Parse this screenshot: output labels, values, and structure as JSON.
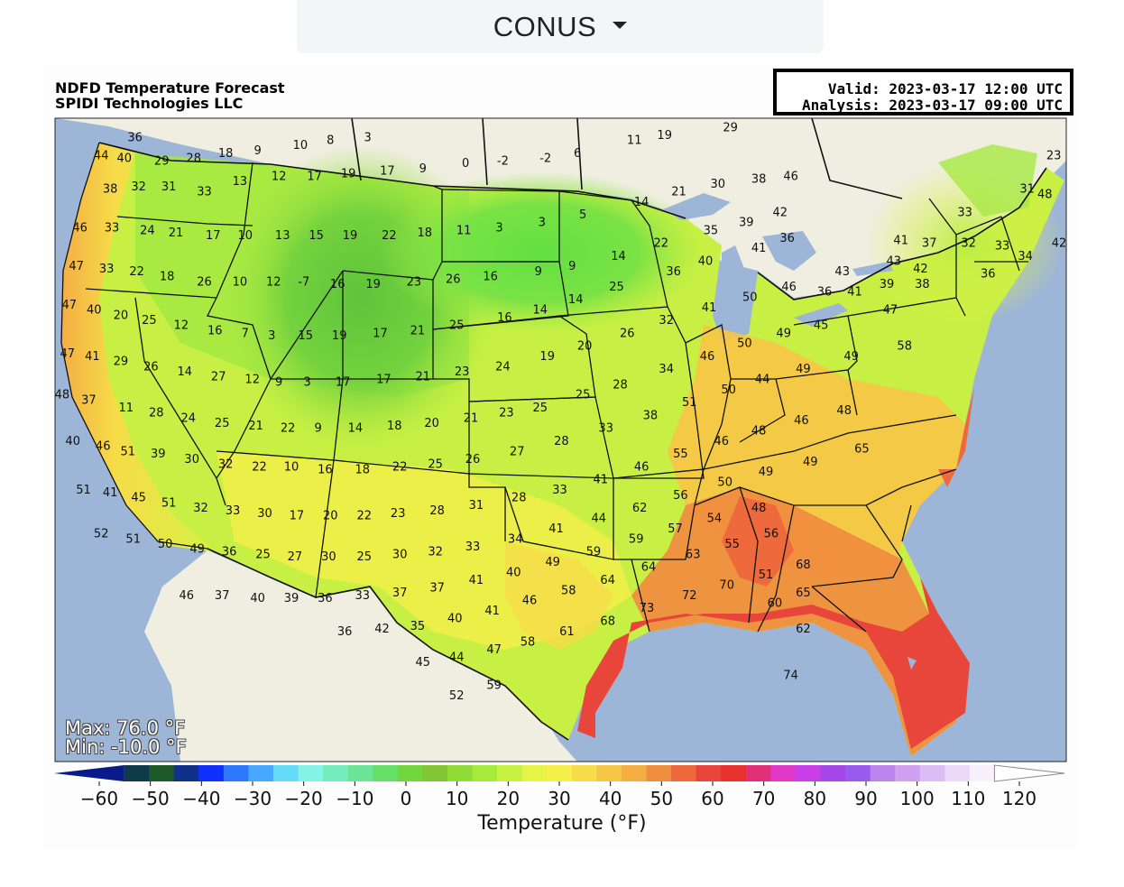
{
  "selector": {
    "label": "CONUS"
  },
  "header": {
    "title": "NDFD Temperature Forecast",
    "provider": "SPIDI Technologies LLC",
    "valid": "Valid: 2023-03-17 12:00 UTC",
    "analysis": "Analysis: 2023-03-17 09:00 UTC"
  },
  "stats": {
    "max": "Max: 76.0 °F",
    "min": "Min: -10.0 °F"
  },
  "colorbar": {
    "label": "Temperature (°F)",
    "ticks": [
      "-60",
      "-50",
      "-40",
      "-30",
      "-20",
      "-10",
      "0",
      "10",
      "20",
      "30",
      "40",
      "50",
      "60",
      "70",
      "80",
      "90",
      "100",
      "110",
      "120"
    ],
    "colors": [
      "#0a1a8a",
      "#0e3a4a",
      "#1e5a28",
      "#10308a",
      "#1030ff",
      "#2e78ff",
      "#46a8ff",
      "#64dcf8",
      "#84f2e6",
      "#74ecbc",
      "#6ce696",
      "#66e066",
      "#72d63e",
      "#82c636",
      "#92dc38",
      "#a6ea3c",
      "#c6f242",
      "#e6f446",
      "#f6f04a",
      "#f6dc48",
      "#f6c646",
      "#f4ae44",
      "#f08e40",
      "#ee6a3c",
      "#e8463a",
      "#e8302c",
      "#e23078",
      "#e238c8",
      "#c83ee8",
      "#a446e8",
      "#9a5aee",
      "#bc82ee",
      "#d0a0f0",
      "#dcbcf4",
      "#ecd8f8",
      "#f8f0fa",
      "#ffffff"
    ]
  },
  "stations": [
    {
      "t": "36",
      "lon": -122.5,
      "lat": 48.6
    },
    {
      "t": "44",
      "lon": -124.4,
      "lat": 47.9
    },
    {
      "t": "40",
      "lon": -123.1,
      "lat": 47.8
    },
    {
      "t": "29",
      "lon": -121.0,
      "lat": 47.7
    },
    {
      "t": "28",
      "lon": -119.2,
      "lat": 47.8
    },
    {
      "t": "18",
      "lon": -117.4,
      "lat": 48.0
    },
    {
      "t": "9",
      "lon": -115.6,
      "lat": 48.1
    },
    {
      "t": "10",
      "lon": -113.2,
      "lat": 48.3
    },
    {
      "t": "8",
      "lon": -111.5,
      "lat": 48.5
    },
    {
      "t": "3",
      "lon": -109.4,
      "lat": 48.6
    },
    {
      "t": "38",
      "lon": -123.9,
      "lat": 46.6
    },
    {
      "t": "32",
      "lon": -122.3,
      "lat": 46.7
    },
    {
      "t": "31",
      "lon": -120.6,
      "lat": 46.7
    },
    {
      "t": "33",
      "lon": -118.6,
      "lat": 46.5
    },
    {
      "t": "13",
      "lon": -116.6,
      "lat": 46.9
    },
    {
      "t": "12",
      "lon": -114.4,
      "lat": 47.1
    },
    {
      "t": "17",
      "lon": -112.4,
      "lat": 47.1
    },
    {
      "t": "19",
      "lon": -110.5,
      "lat": 47.2
    },
    {
      "t": "17",
      "lon": -108.3,
      "lat": 47.3
    },
    {
      "t": "9",
      "lon": -106.3,
      "lat": 47.4
    },
    {
      "t": "0",
      "lon": -103.9,
      "lat": 47.6
    },
    {
      "t": "-2",
      "lon": -101.8,
      "lat": 47.7
    },
    {
      "t": "-2",
      "lon": -99.4,
      "lat": 47.8
    },
    {
      "t": "6",
      "lon": -97.6,
      "lat": 48.0
    },
    {
      "t": "11",
      "lon": -94.4,
      "lat": 48.5
    },
    {
      "t": "19",
      "lon": -92.7,
      "lat": 48.7
    },
    {
      "t": "29",
      "lon": -89.0,
      "lat": 49.0
    },
    {
      "t": "46",
      "lon": -125.6,
      "lat": 45.1
    },
    {
      "t": "33",
      "lon": -123.8,
      "lat": 45.1
    },
    {
      "t": "24",
      "lon": -121.8,
      "lat": 45.0
    },
    {
      "t": "21",
      "lon": -120.2,
      "lat": 44.9
    },
    {
      "t": "17",
      "lon": -118.1,
      "lat": 44.8
    },
    {
      "t": "10",
      "lon": -116.3,
      "lat": 44.8
    },
    {
      "t": "13",
      "lon": -114.2,
      "lat": 44.8
    },
    {
      "t": "15",
      "lon": -112.3,
      "lat": 44.8
    },
    {
      "t": "19",
      "lon": -110.4,
      "lat": 44.8
    },
    {
      "t": "22",
      "lon": -108.2,
      "lat": 44.8
    },
    {
      "t": "18",
      "lon": -106.2,
      "lat": 44.9
    },
    {
      "t": "11",
      "lon": -104.0,
      "lat": 45.0
    },
    {
      "t": "3",
      "lon": -102.0,
      "lat": 45.1
    },
    {
      "t": "3",
      "lon": -99.6,
      "lat": 45.3
    },
    {
      "t": "5",
      "lon": -97.3,
      "lat": 45.6
    },
    {
      "t": "14",
      "lon": -94.0,
      "lat": 46.1
    },
    {
      "t": "21",
      "lon": -91.9,
      "lat": 46.5
    },
    {
      "t": "30",
      "lon": -89.7,
      "lat": 46.8
    },
    {
      "t": "38",
      "lon": -87.4,
      "lat": 47.0
    },
    {
      "t": "46",
      "lon": -85.6,
      "lat": 47.1
    },
    {
      "t": "47",
      "lon": -125.8,
      "lat": 43.6
    },
    {
      "t": "33",
      "lon": -124.1,
      "lat": 43.5
    },
    {
      "t": "22",
      "lon": -122.4,
      "lat": 43.4
    },
    {
      "t": "18",
      "lon": -120.7,
      "lat": 43.2
    },
    {
      "t": "26",
      "lon": -118.6,
      "lat": 43.0
    },
    {
      "t": "10",
      "lon": -116.6,
      "lat": 43.0
    },
    {
      "t": "12",
      "lon": -114.7,
      "lat": 43.0
    },
    {
      "t": "-7",
      "lon": -113.0,
      "lat": 43.0
    },
    {
      "t": "16",
      "lon": -111.1,
      "lat": 42.9
    },
    {
      "t": "19",
      "lon": -109.1,
      "lat": 42.9
    },
    {
      "t": "23",
      "lon": -106.8,
      "lat": 43.0
    },
    {
      "t": "26",
      "lon": -104.6,
      "lat": 43.1
    },
    {
      "t": "16",
      "lon": -102.5,
      "lat": 43.2
    },
    {
      "t": "9",
      "lon": -99.8,
      "lat": 43.4
    },
    {
      "t": "9",
      "lon": -97.9,
      "lat": 43.6
    },
    {
      "t": "14",
      "lon": -95.3,
      "lat": 44.0
    },
    {
      "t": "22",
      "lon": -92.9,
      "lat": 44.5
    },
    {
      "t": "35",
      "lon": -90.1,
      "lat": 45.0
    },
    {
      "t": "39",
      "lon": -88.1,
      "lat": 45.3
    },
    {
      "t": "42",
      "lon": -86.2,
      "lat": 45.7
    },
    {
      "t": "47",
      "lon": -126.2,
      "lat": 42.1
    },
    {
      "t": "40",
      "lon": -124.8,
      "lat": 41.9
    },
    {
      "t": "20",
      "lon": -123.3,
      "lat": 41.7
    },
    {
      "t": "25",
      "lon": -121.7,
      "lat": 41.5
    },
    {
      "t": "12",
      "lon": -119.9,
      "lat": 41.3
    },
    {
      "t": "16",
      "lon": -118.0,
      "lat": 41.1
    },
    {
      "t": "7",
      "lon": -116.3,
      "lat": 41.0
    },
    {
      "t": "3",
      "lon": -114.8,
      "lat": 40.9
    },
    {
      "t": "15",
      "lon": -112.9,
      "lat": 40.9
    },
    {
      "t": "19",
      "lon": -111.0,
      "lat": 40.9
    },
    {
      "t": "17",
      "lon": -108.7,
      "lat": 41.0
    },
    {
      "t": "21",
      "lon": -106.6,
      "lat": 41.1
    },
    {
      "t": "25",
      "lon": -104.4,
      "lat": 41.3
    },
    {
      "t": "16",
      "lon": -101.7,
      "lat": 41.6
    },
    {
      "t": "14",
      "lon": -99.7,
      "lat": 41.9
    },
    {
      "t": "14",
      "lon": -97.7,
      "lat": 42.3
    },
    {
      "t": "25",
      "lon": -95.4,
      "lat": 42.8
    },
    {
      "t": "36",
      "lon": -92.2,
      "lat": 43.4
    },
    {
      "t": "40",
      "lon": -90.4,
      "lat": 43.8
    },
    {
      "t": "41",
      "lon": -87.4,
      "lat": 44.3
    },
    {
      "t": "36",
      "lon": -85.8,
      "lat": 44.7
    },
    {
      "t": "47",
      "lon": -126.3,
      "lat": 40.2
    },
    {
      "t": "41",
      "lon": -124.9,
      "lat": 40.1
    },
    {
      "t": "29",
      "lon": -123.3,
      "lat": 39.9
    },
    {
      "t": "26",
      "lon": -121.6,
      "lat": 39.7
    },
    {
      "t": "14",
      "lon": -119.7,
      "lat": 39.5
    },
    {
      "t": "27",
      "lon": -117.8,
      "lat": 39.3
    },
    {
      "t": "12",
      "lon": -115.9,
      "lat": 39.2
    },
    {
      "t": "9",
      "lon": -114.4,
      "lat": 39.1
    },
    {
      "t": "3",
      "lon": -112.8,
      "lat": 39.1
    },
    {
      "t": "17",
      "lon": -110.8,
      "lat": 39.1
    },
    {
      "t": "17",
      "lon": -108.5,
      "lat": 39.2
    },
    {
      "t": "21",
      "lon": -106.3,
      "lat": 39.3
    },
    {
      "t": "23",
      "lon": -104.1,
      "lat": 39.5
    },
    {
      "t": "24",
      "lon": -101.8,
      "lat": 39.7
    },
    {
      "t": "19",
      "lon": -99.3,
      "lat": 40.1
    },
    {
      "t": "20",
      "lon": -97.2,
      "lat": 40.5
    },
    {
      "t": "26",
      "lon": -94.8,
      "lat": 41.0
    },
    {
      "t": "32",
      "lon": -92.6,
      "lat": 41.5
    },
    {
      "t": "41",
      "lon": -90.2,
      "lat": 42.0
    },
    {
      "t": "50",
      "lon": -87.9,
      "lat": 42.4
    },
    {
      "t": "46",
      "lon": -85.7,
      "lat": 42.8
    },
    {
      "t": "43",
      "lon": -82.7,
      "lat": 43.4
    },
    {
      "t": "43",
      "lon": -79.8,
      "lat": 43.8
    },
    {
      "t": "48",
      "lon": -126.6,
      "lat": 38.6
    },
    {
      "t": "37",
      "lon": -125.1,
      "lat": 38.4
    },
    {
      "t": "11",
      "lon": -123.0,
      "lat": 38.1
    },
    {
      "t": "28",
      "lon": -121.3,
      "lat": 37.9
    },
    {
      "t": "24",
      "lon": -119.5,
      "lat": 37.7
    },
    {
      "t": "25",
      "lon": -117.6,
      "lat": 37.5
    },
    {
      "t": "21",
      "lon": -115.7,
      "lat": 37.4
    },
    {
      "t": "22",
      "lon": -113.9,
      "lat": 37.3
    },
    {
      "t": "9",
      "lon": -112.2,
      "lat": 37.3
    },
    {
      "t": "14",
      "lon": -110.1,
      "lat": 37.3
    },
    {
      "t": "18",
      "lon": -107.9,
      "lat": 37.4
    },
    {
      "t": "20",
      "lon": -105.8,
      "lat": 37.5
    },
    {
      "t": "21",
      "lon": -103.6,
      "lat": 37.7
    },
    {
      "t": "23",
      "lon": -101.6,
      "lat": 37.9
    },
    {
      "t": "25",
      "lon": -99.7,
      "lat": 38.1
    },
    {
      "t": "25",
      "lon": -97.3,
      "lat": 38.6
    },
    {
      "t": "28",
      "lon": -95.2,
      "lat": 39.0
    },
    {
      "t": "34",
      "lon": -92.6,
      "lat": 39.6
    },
    {
      "t": "46",
      "lon": -90.3,
      "lat": 40.1
    },
    {
      "t": "50",
      "lon": -88.2,
      "lat": 40.6
    },
    {
      "t": "49",
      "lon": -86.0,
      "lat": 41.0
    },
    {
      "t": "45",
      "lon": -83.9,
      "lat": 41.3
    },
    {
      "t": "47",
      "lon": -80.0,
      "lat": 41.9
    },
    {
      "t": "42",
      "lon": -78.3,
      "lat": 43.5
    },
    {
      "t": "40",
      "lon": -126.0,
      "lat": 36.8
    },
    {
      "t": "46",
      "lon": -124.3,
      "lat": 36.6
    },
    {
      "t": "51",
      "lon": -122.9,
      "lat": 36.4
    },
    {
      "t": "39",
      "lon": -121.2,
      "lat": 36.3
    },
    {
      "t": "30",
      "lon": -119.3,
      "lat": 36.1
    },
    {
      "t": "32",
      "lon": -117.4,
      "lat": 35.9
    },
    {
      "t": "22",
      "lon": -115.5,
      "lat": 35.8
    },
    {
      "t": "10",
      "lon": -113.7,
      "lat": 35.8
    },
    {
      "t": "16",
      "lon": -111.8,
      "lat": 35.7
    },
    {
      "t": "18",
      "lon": -109.7,
      "lat": 35.7
    },
    {
      "t": "22",
      "lon": -107.6,
      "lat": 35.8
    },
    {
      "t": "25",
      "lon": -105.6,
      "lat": 35.9
    },
    {
      "t": "26",
      "lon": -103.5,
      "lat": 36.1
    },
    {
      "t": "27",
      "lon": -101.0,
      "lat": 36.4
    },
    {
      "t": "28",
      "lon": -98.5,
      "lat": 36.8
    },
    {
      "t": "33",
      "lon": -96.0,
      "lat": 37.3
    },
    {
      "t": "38",
      "lon": -93.5,
      "lat": 37.8
    },
    {
      "t": "51",
      "lon": -91.3,
      "lat": 38.3
    },
    {
      "t": "50",
      "lon": -89.1,
      "lat": 38.8
    },
    {
      "t": "44",
      "lon": -87.2,
      "lat": 39.2
    },
    {
      "t": "49",
      "lon": -84.9,
      "lat": 39.6
    },
    {
      "t": "49",
      "lon": -82.2,
      "lat": 40.1
    },
    {
      "t": "58",
      "lon": -79.2,
      "lat": 40.5
    },
    {
      "t": "51",
      "lon": -125.4,
      "lat": 34.9
    },
    {
      "t": "41",
      "lon": -123.9,
      "lat": 34.8
    },
    {
      "t": "45",
      "lon": -122.3,
      "lat": 34.6
    },
    {
      "t": "51",
      "lon": -120.6,
      "lat": 34.4
    },
    {
      "t": "32",
      "lon": -118.8,
      "lat": 34.2
    },
    {
      "t": "33",
      "lon": -117.0,
      "lat": 34.1
    },
    {
      "t": "30",
      "lon": -115.2,
      "lat": 34.0
    },
    {
      "t": "17",
      "lon": -113.4,
      "lat": 33.9
    },
    {
      "t": "20",
      "lon": -111.5,
      "lat": 33.9
    },
    {
      "t": "22",
      "lon": -109.6,
      "lat": 33.9
    },
    {
      "t": "23",
      "lon": -107.7,
      "lat": 34.0
    },
    {
      "t": "28",
      "lon": -105.5,
      "lat": 34.1
    },
    {
      "t": "31",
      "lon": -103.3,
      "lat": 34.3
    },
    {
      "t": "28",
      "lon": -100.9,
      "lat": 34.6
    },
    {
      "t": "33",
      "lon": -98.6,
      "lat": 34.9
    },
    {
      "t": "41",
      "lon": -96.3,
      "lat": 35.3
    },
    {
      "t": "46",
      "lon": -94.0,
      "lat": 35.8
    },
    {
      "t": "55",
      "lon": -91.8,
      "lat": 36.3
    },
    {
      "t": "46",
      "lon": -89.5,
      "lat": 36.8
    },
    {
      "t": "48",
      "lon": -87.4,
      "lat": 37.2
    },
    {
      "t": "46",
      "lon": -85.0,
      "lat": 37.6
    },
    {
      "t": "48",
      "lon": -82.6,
      "lat": 38.0
    },
    {
      "t": "52",
      "lon": -124.4,
      "lat": 33.2
    },
    {
      "t": "51",
      "lon": -122.6,
      "lat": 33.0
    },
    {
      "t": "50",
      "lon": -120.8,
      "lat": 32.8
    },
    {
      "t": "49",
      "lon": -119.0,
      "lat": 32.6
    },
    {
      "t": "36",
      "lon": -117.2,
      "lat": 32.5
    },
    {
      "t": "25",
      "lon": -115.3,
      "lat": 32.4
    },
    {
      "t": "27",
      "lon": -113.5,
      "lat": 32.3
    },
    {
      "t": "30",
      "lon": -111.6,
      "lat": 32.3
    },
    {
      "t": "25",
      "lon": -109.6,
      "lat": 32.3
    },
    {
      "t": "30",
      "lon": -107.6,
      "lat": 32.4
    },
    {
      "t": "32",
      "lon": -105.6,
      "lat": 32.5
    },
    {
      "t": "33",
      "lon": -103.5,
      "lat": 32.7
    },
    {
      "t": "34",
      "lon": -101.1,
      "lat": 33.0
    },
    {
      "t": "41",
      "lon": -98.8,
      "lat": 33.4
    },
    {
      "t": "44",
      "lon": -96.4,
      "lat": 33.8
    },
    {
      "t": "62",
      "lon": -94.1,
      "lat": 34.2
    },
    {
      "t": "56",
      "lon": -91.8,
      "lat": 34.7
    },
    {
      "t": "50",
      "lon": -89.3,
      "lat": 35.2
    },
    {
      "t": "49",
      "lon": -87.0,
      "lat": 35.6
    },
    {
      "t": "49",
      "lon": -84.5,
      "lat": 36.0
    },
    {
      "t": "65",
      "lon": -81.6,
      "lat": 36.5
    },
    {
      "t": "46",
      "lon": -119.6,
      "lat": 30.8
    },
    {
      "t": "37",
      "lon": -117.6,
      "lat": 30.8
    },
    {
      "t": "40",
      "lon": -115.6,
      "lat": 30.7
    },
    {
      "t": "39",
      "lon": -113.7,
      "lat": 30.7
    },
    {
      "t": "36",
      "lon": -111.8,
      "lat": 30.7
    },
    {
      "t": "33",
      "lon": -109.7,
      "lat": 30.8
    },
    {
      "t": "37",
      "lon": -107.6,
      "lat": 30.9
    },
    {
      "t": "37",
      "lon": -105.5,
      "lat": 31.1
    },
    {
      "t": "41",
      "lon": -103.3,
      "lat": 31.4
    },
    {
      "t": "40",
      "lon": -101.2,
      "lat": 31.7
    },
    {
      "t": "49",
      "lon": -99.0,
      "lat": 32.1
    },
    {
      "t": "59",
      "lon": -96.7,
      "lat": 32.5
    },
    {
      "t": "59",
      "lon": -94.3,
      "lat": 33.0
    },
    {
      "t": "57",
      "lon": -92.1,
      "lat": 33.4
    },
    {
      "t": "54",
      "lon": -89.9,
      "lat": 33.8
    },
    {
      "t": "48",
      "lon": -87.4,
      "lat": 34.2
    },
    {
      "t": "36",
      "lon": -110.7,
      "lat": 29.4
    },
    {
      "t": "42",
      "lon": -108.6,
      "lat": 29.5
    },
    {
      "t": "35",
      "lon": -106.6,
      "lat": 29.6
    },
    {
      "t": "40",
      "lon": -104.5,
      "lat": 29.9
    },
    {
      "t": "41",
      "lon": -102.4,
      "lat": 30.2
    },
    {
      "t": "46",
      "lon": -100.3,
      "lat": 30.6
    },
    {
      "t": "58",
      "lon": -98.1,
      "lat": 31.0
    },
    {
      "t": "64",
      "lon": -95.9,
      "lat": 31.4
    },
    {
      "t": "64",
      "lon": -93.6,
      "lat": 31.9
    },
    {
      "t": "63",
      "lon": -91.1,
      "lat": 32.4
    },
    {
      "t": "55",
      "lon": -88.9,
      "lat": 32.8
    },
    {
      "t": "56",
      "lon": -86.7,
      "lat": 33.2
    },
    {
      "t": "45",
      "lon": -106.3,
      "lat": 28.2
    },
    {
      "t": "44",
      "lon": -104.4,
      "lat": 28.4
    },
    {
      "t": "47",
      "lon": -102.3,
      "lat": 28.7
    },
    {
      "t": "58",
      "lon": -100.4,
      "lat": 29.0
    },
    {
      "t": "61",
      "lon": -98.2,
      "lat": 29.4
    },
    {
      "t": "68",
      "lon": -95.9,
      "lat": 29.8
    },
    {
      "t": "73",
      "lon": -93.7,
      "lat": 30.3
    },
    {
      "t": "72",
      "lon": -91.3,
      "lat": 30.8
    },
    {
      "t": "70",
      "lon": -89.2,
      "lat": 31.2
    },
    {
      "t": "51",
      "lon": -87.0,
      "lat": 31.6
    },
    {
      "t": "68",
      "lon": -84.9,
      "lat": 32.0
    },
    {
      "t": "52",
      "lon": -104.4,
      "lat": 26.9
    },
    {
      "t": "59",
      "lon": -102.3,
      "lat": 27.3
    },
    {
      "t": "60",
      "lon": -86.5,
      "lat": 30.5
    },
    {
      "t": "65",
      "lon": -84.9,
      "lat": 30.9
    },
    {
      "t": "62",
      "lon": -84.9,
      "lat": 29.5
    },
    {
      "t": "74",
      "lon": -85.6,
      "lat": 27.7
    },
    {
      "t": "23",
      "lon": -70.8,
      "lat": 47.9
    },
    {
      "t": "31",
      "lon": -72.3,
      "lat": 46.6
    },
    {
      "t": "48",
      "lon": -71.3,
      "lat": 46.4
    },
    {
      "t": "33",
      "lon": -75.8,
      "lat": 45.7
    },
    {
      "t": "37",
      "lon": -77.8,
      "lat": 44.5
    },
    {
      "t": "32",
      "lon": -75.6,
      "lat": 44.5
    },
    {
      "t": "41",
      "lon": -79.4,
      "lat": 44.6
    },
    {
      "t": "33",
      "lon": -73.7,
      "lat": 44.4
    },
    {
      "t": "42",
      "lon": -70.5,
      "lat": 44.5
    },
    {
      "t": "34",
      "lon": -72.4,
      "lat": 44.0
    },
    {
      "t": "36",
      "lon": -74.5,
      "lat": 43.3
    },
    {
      "t": "39",
      "lon": -80.2,
      "lat": 42.9
    },
    {
      "t": "38",
      "lon": -78.2,
      "lat": 42.9
    },
    {
      "t": "41",
      "lon": -82.0,
      "lat": 42.6
    },
    {
      "t": "36",
      "lon": -83.7,
      "lat": 42.6
    }
  ]
}
